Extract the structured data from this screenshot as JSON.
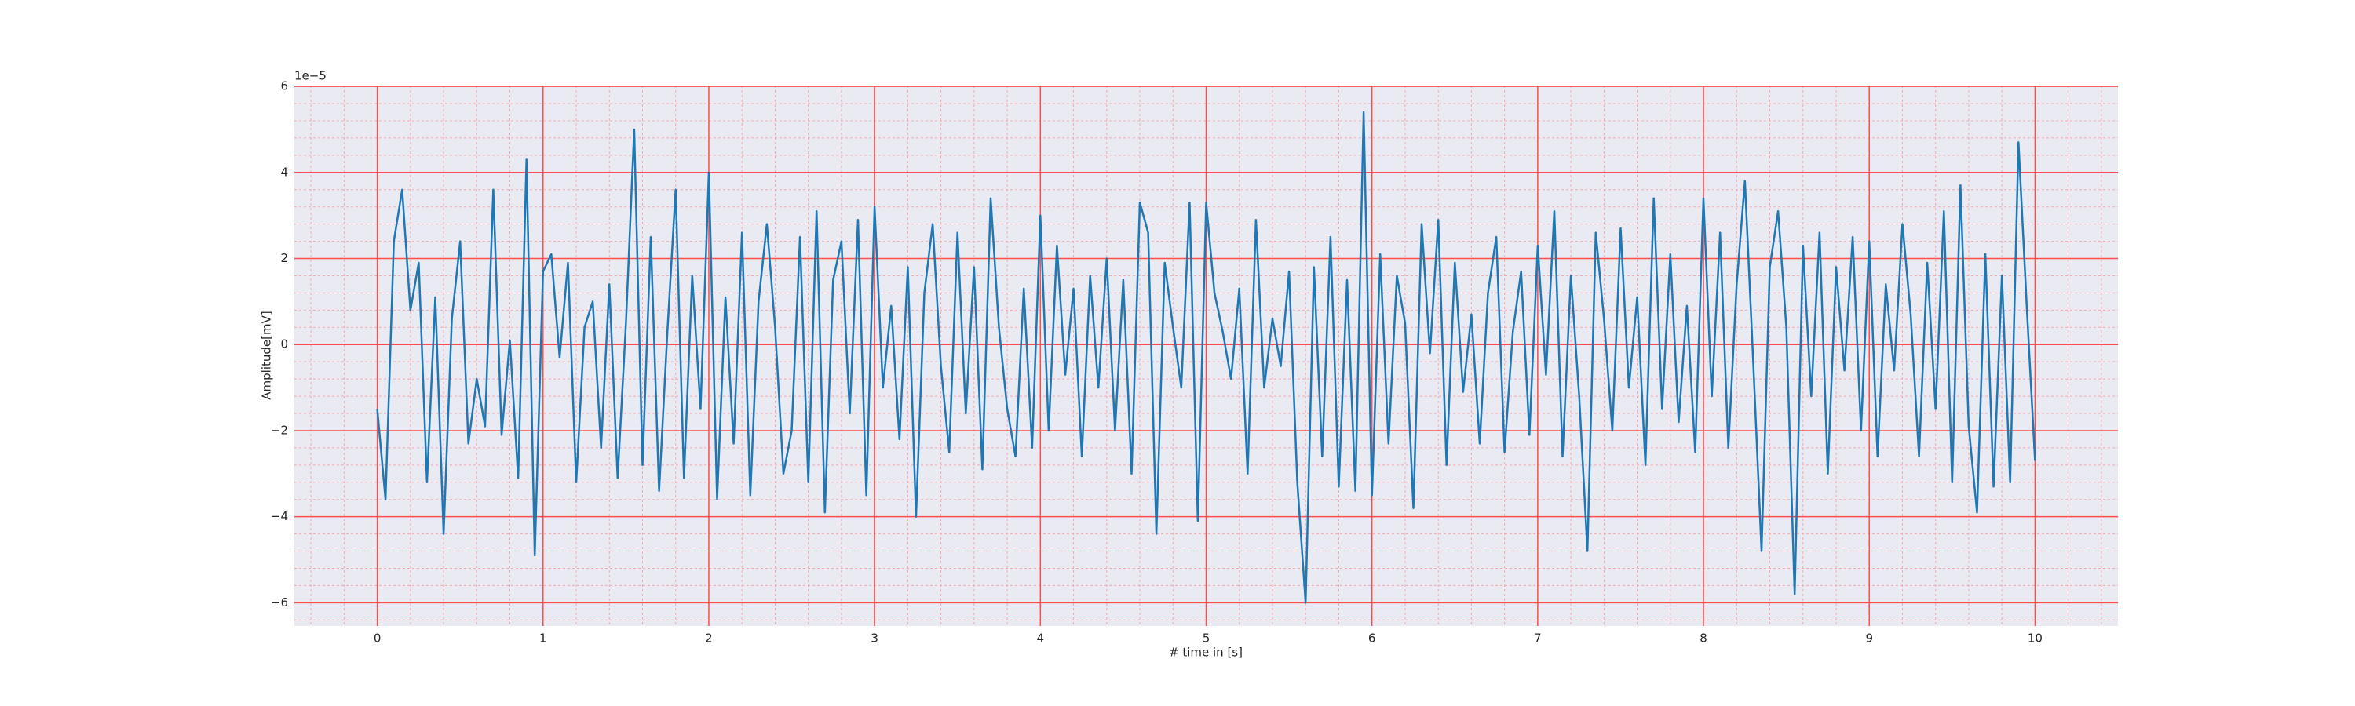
{
  "chart_data": {
    "type": "line",
    "x_label": "# time in [s]",
    "y_label": "Amplitude[mV]",
    "offset_text": "1e−5",
    "xlim": [
      -0.5,
      10.5
    ],
    "ylim": [
      -6.54,
      6.02
    ],
    "xticks": [
      0,
      1,
      2,
      3,
      4,
      5,
      6,
      7,
      8,
      9,
      10
    ],
    "yticks": [
      {
        "value": -6,
        "label": "−6"
      },
      {
        "value": -4,
        "label": "−4"
      },
      {
        "value": -2,
        "label": "−2"
      },
      0,
      2,
      4,
      6
    ],
    "grid": true,
    "minor_grid": true,
    "background": "#eaeaf2",
    "grid_color": "#ff4d4d",
    "minor_grid_color": "#f5a8b0",
    "x": [
      0,
      0.05,
      0.1,
      0.15,
      0.2,
      0.25,
      0.3,
      0.35,
      0.4,
      0.45,
      0.5,
      0.55,
      0.6,
      0.65,
      0.7,
      0.75,
      0.8,
      0.85,
      0.9,
      0.95,
      1,
      1.05,
      1.1,
      1.15,
      1.2,
      1.25,
      1.3,
      1.35,
      1.4,
      1.45,
      1.5,
      1.55,
      1.6,
      1.65,
      1.7,
      1.75,
      1.8,
      1.85,
      1.9,
      1.95,
      2,
      2.05,
      2.1,
      2.15,
      2.2,
      2.25,
      2.3,
      2.35,
      2.4,
      2.45,
      2.5,
      2.55,
      2.6,
      2.65,
      2.7,
      2.75,
      2.8,
      2.85,
      2.9,
      2.95,
      3,
      3.05,
      3.1,
      3.15,
      3.2,
      3.25,
      3.3,
      3.35,
      3.4,
      3.45,
      3.5,
      3.55,
      3.6,
      3.65,
      3.7,
      3.75,
      3.8,
      3.85,
      3.9,
      3.95,
      4,
      4.05,
      4.1,
      4.15,
      4.2,
      4.25,
      4.3,
      4.35,
      4.4,
      4.45,
      4.5,
      4.55,
      4.6,
      4.65,
      4.7,
      4.75,
      4.8,
      4.85,
      4.9,
      4.95,
      5,
      5.05,
      5.1,
      5.15,
      5.2,
      5.25,
      5.3,
      5.35,
      5.4,
      5.45,
      5.5,
      5.55,
      5.6,
      5.65,
      5.7,
      5.75,
      5.8,
      5.85,
      5.9,
      5.95,
      6,
      6.05,
      6.1,
      6.15,
      6.2,
      6.25,
      6.3,
      6.35,
      6.4,
      6.45,
      6.5,
      6.55,
      6.6,
      6.65,
      6.7,
      6.75,
      6.8,
      6.85,
      6.9,
      6.95,
      7,
      7.05,
      7.1,
      7.15,
      7.2,
      7.25,
      7.3,
      7.35,
      7.4,
      7.45,
      7.5,
      7.55,
      7.6,
      7.65,
      7.7,
      7.75,
      7.8,
      7.85,
      7.9,
      7.95,
      8,
      8.05,
      8.1,
      8.15,
      8.2,
      8.25,
      8.3,
      8.35,
      8.4,
      8.45,
      8.5,
      8.55,
      8.6,
      8.65,
      8.7,
      8.75,
      8.8,
      8.85,
      8.9,
      8.95,
      9,
      9.05,
      9.1,
      9.15,
      9.2,
      9.25,
      9.3,
      9.35,
      9.4,
      9.45,
      9.5,
      9.55,
      9.6,
      9.65,
      9.7,
      9.75,
      9.8,
      9.85,
      9.9,
      9.95,
      10
    ],
    "series": [
      {
        "color": "#1f77b4",
        "values": [
          -1.5,
          -3.6,
          2.4,
          3.6,
          0.8,
          1.9,
          -3.2,
          1.1,
          -4.4,
          0.6,
          2.4,
          -2.3,
          -0.8,
          -1.9,
          3.6,
          -2.1,
          0.1,
          -3.1,
          4.3,
          -4.9,
          1.7,
          2.1,
          -0.3,
          1.9,
          -3.2,
          0.4,
          1.0,
          -2.4,
          1.4,
          -3.1,
          0.5,
          5.0,
          -2.8,
          2.5,
          -3.4,
          0.3,
          3.6,
          -3.1,
          1.6,
          -1.5,
          4.0,
          -3.6,
          1.1,
          -2.3,
          2.6,
          -3.5,
          1.0,
          2.8,
          0.4,
          -3.0,
          -2.0,
          2.5,
          -3.2,
          3.1,
          -3.9,
          1.5,
          2.4,
          -1.6,
          2.9,
          -3.5,
          3.2,
          -1.0,
          0.9,
          -2.2,
          1.8,
          -4.0,
          1.2,
          2.8,
          -0.5,
          -2.5,
          2.6,
          -1.6,
          1.8,
          -2.9,
          3.4,
          0.4,
          -1.5,
          -2.6,
          1.3,
          -2.4,
          3.0,
          -2.0,
          2.3,
          -0.7,
          1.3,
          -2.6,
          1.6,
          -1.0,
          2.0,
          -2.0,
          1.5,
          -3.0,
          3.3,
          2.6,
          -4.4,
          1.9,
          0.4,
          -1.0,
          3.3,
          -4.1,
          3.3,
          1.2,
          0.3,
          -0.8,
          1.3,
          -3.0,
          2.9,
          -1.0,
          0.6,
          -0.5,
          1.7,
          -3.2,
          -6.0,
          1.8,
          -2.6,
          2.5,
          -3.3,
          1.5,
          -3.4,
          5.4,
          -3.5,
          2.1,
          -2.3,
          1.6,
          0.5,
          -3.8,
          2.8,
          -0.2,
          2.9,
          -2.8,
          1.9,
          -1.1,
          0.7,
          -2.3,
          1.2,
          2.5,
          -2.5,
          0.3,
          1.7,
          -2.1,
          2.3,
          -0.7,
          3.1,
          -2.6,
          1.6,
          -1.2,
          -4.8,
          2.6,
          0.6,
          -2.0,
          2.7,
          -1.0,
          1.1,
          -2.8,
          3.4,
          -1.5,
          2.1,
          -1.8,
          0.9,
          -2.5,
          3.4,
          -1.2,
          2.6,
          -2.4,
          1.4,
          3.8,
          -0.4,
          -4.8,
          1.8,
          3.1,
          0.4,
          -5.8,
          2.3,
          -1.2,
          2.6,
          -3.0,
          1.8,
          -0.6,
          2.5,
          -2.0,
          2.4,
          -2.6,
          1.4,
          -0.6,
          2.8,
          0.7,
          -2.6,
          1.9,
          -1.5,
          3.1,
          -3.2,
          3.7,
          -1.9,
          -3.9,
          2.1,
          -3.3,
          1.6,
          -3.2,
          4.7,
          0.9,
          -2.7
        ]
      }
    ]
  }
}
